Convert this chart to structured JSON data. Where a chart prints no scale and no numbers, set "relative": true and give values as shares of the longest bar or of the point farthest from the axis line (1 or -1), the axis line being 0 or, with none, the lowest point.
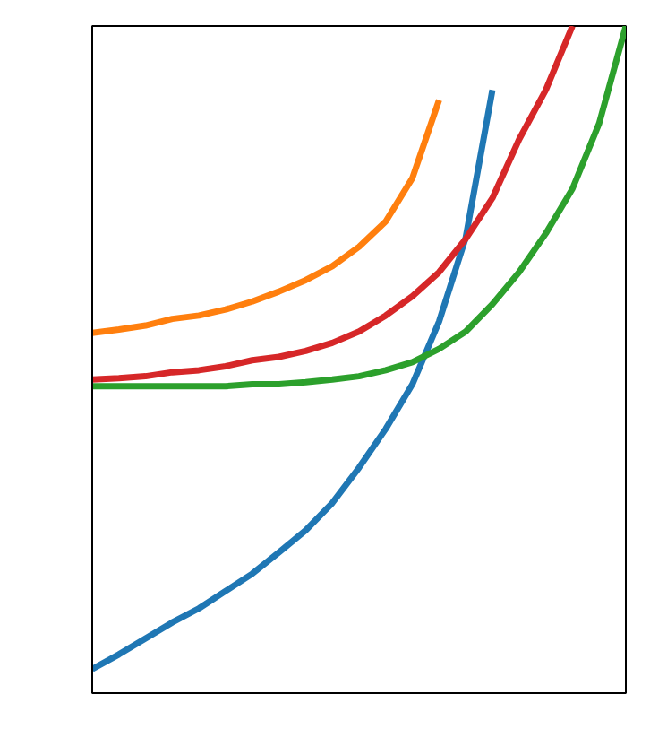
{
  "chart_data": {
    "type": "line",
    "relative": true,
    "grid": false,
    "marker": "none",
    "line_style": "solid",
    "categories": [
      null,
      null,
      null,
      null,
      null,
      null,
      null,
      null,
      null,
      null,
      null,
      null,
      null,
      null,
      null,
      null,
      null,
      null,
      null,
      null,
      null
    ],
    "series": [
      {
        "color": "#1f77b4",
        "values": [
          0.036,
          0.058,
          0.082,
          0.106,
          0.127,
          0.153,
          0.179,
          0.211,
          0.244,
          0.285,
          0.338,
          0.396,
          0.463,
          0.557,
          0.683,
          0.904,
          null,
          null,
          null,
          null,
          null
        ]
      },
      {
        "color": "#ff7f0e",
        "values": [
          0.54,
          0.545,
          0.551,
          0.561,
          0.566,
          0.575,
          0.587,
          0.602,
          0.619,
          0.64,
          0.669,
          0.707,
          0.772,
          0.889,
          null,
          null,
          null,
          null,
          null,
          null,
          null
        ]
      },
      {
        "color": "#d62728",
        "values": [
          0.47,
          0.472,
          0.475,
          0.481,
          0.484,
          0.49,
          0.499,
          0.504,
          0.513,
          0.525,
          0.542,
          0.566,
          0.595,
          0.631,
          0.681,
          0.742,
          0.83,
          0.904,
          1,
          null,
          null
        ]
      },
      {
        "color": "#2ca02c",
        "values": [
          0.46,
          0.46,
          0.46,
          0.46,
          0.46,
          0.46,
          0.463,
          0.463,
          0.466,
          0.47,
          0.475,
          0.484,
          0.496,
          0.516,
          0.542,
          0.583,
          0.631,
          0.689,
          0.756,
          0.854,
          1
        ]
      }
    ]
  }
}
